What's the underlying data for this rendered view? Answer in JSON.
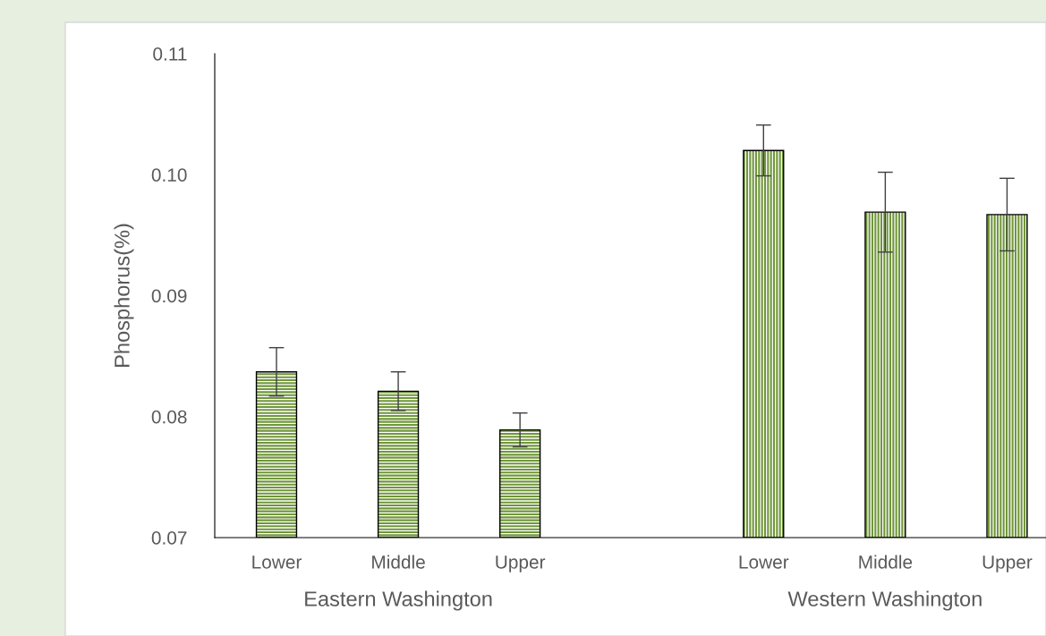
{
  "chart_data": {
    "type": "bar",
    "ylabel": "Phosphorus(%)",
    "categories": [
      "Lower",
      "Middle",
      "Upper",
      null,
      "Lower",
      "Middle",
      "Upper"
    ],
    "series": [
      {
        "name": "Eastern Washington",
        "color": "#70963a",
        "values": [
          0.0837,
          0.0821,
          0.0789,
          null,
          null,
          null,
          null
        ],
        "errors": [
          0.002,
          0.0016,
          0.0014,
          null,
          null,
          null,
          null
        ]
      },
      {
        "name": "Western Washington",
        "color": "#70963a",
        "values": [
          null,
          null,
          null,
          null,
          0.102,
          0.0969,
          0.0967
        ],
        "errors": [
          null,
          null,
          null,
          null,
          0.0021,
          0.0033,
          0.003
        ]
      }
    ],
    "ylim": [
      0.07,
      0.11
    ],
    "yticks": [
      {
        "value": 0.07,
        "label": "0.07"
      },
      {
        "value": 0.08,
        "label": "0.08"
      },
      {
        "value": 0.09,
        "label": "0.09"
      },
      {
        "value": 0.1,
        "label": "0.10"
      },
      {
        "value": 0.11,
        "label": "0.11"
      }
    ],
    "grid": false,
    "legend": false
  }
}
